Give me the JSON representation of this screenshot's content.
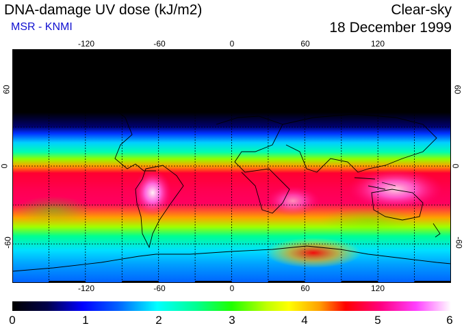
{
  "header": {
    "title": "DNA-damage UV dose (kJ/m2)",
    "subtitle": "MSR - KNMI",
    "condition": "Clear-sky",
    "date": "18 December 1999"
  },
  "map": {
    "lon_range": [
      -180,
      180
    ],
    "lat_range": [
      -90,
      90
    ],
    "lon_ticks": [
      "-120",
      "-60",
      "0",
      "60",
      "120"
    ],
    "lat_ticks_left": [
      "60",
      "0",
      "-60"
    ],
    "lat_ticks_right": [
      "60",
      "0",
      "-60"
    ],
    "grid_spacing_deg": 30
  },
  "colorbar": {
    "min": 0,
    "max": 6,
    "labels": [
      "0",
      "1",
      "2",
      "3",
      "4",
      "5",
      "6"
    ]
  }
}
